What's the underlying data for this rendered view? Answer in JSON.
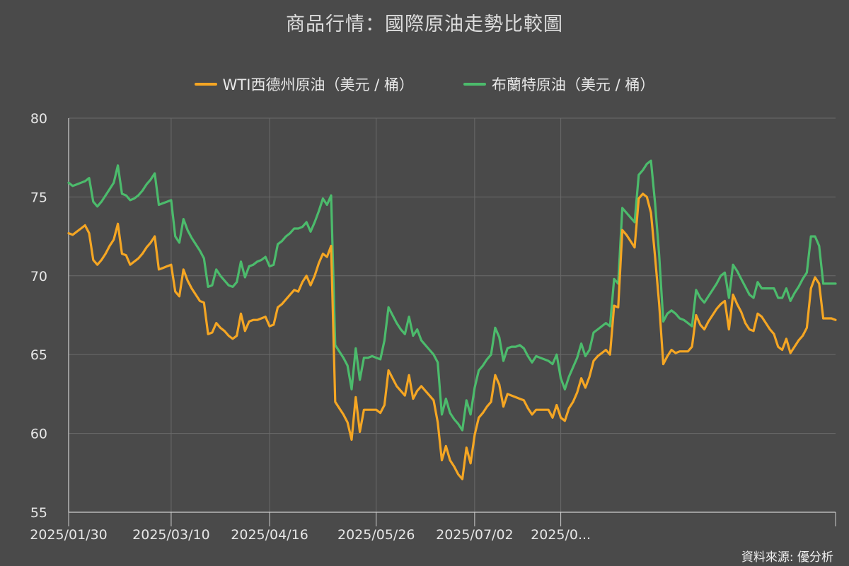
{
  "chart_data": {
    "type": "line",
    "title": "商品行情：國際原油走勢比較圖",
    "source": "資料來源: 優分析",
    "ylim": [
      55,
      80
    ],
    "yticks": [
      "55",
      "60",
      "65",
      "70",
      "75",
      "80"
    ],
    "x_tick_labels": [
      "2025/01/30",
      "2025/03/10",
      "2025/04/16",
      "2025/05/26",
      "2025/07/02",
      "2025/0..."
    ],
    "x_tick_index": [
      0,
      25,
      49,
      75,
      99,
      120
    ],
    "grid": true,
    "legend_position": "top-center",
    "series": [
      {
        "name": "WTI西德州原油（美元 / 桶）",
        "color": "#f5a623",
        "values": [
          72.7,
          72.6,
          72.8,
          73.0,
          73.2,
          72.7,
          71.0,
          70.7,
          71.0,
          71.4,
          71.9,
          72.3,
          73.3,
          71.4,
          71.3,
          70.7,
          70.9,
          71.1,
          71.4,
          71.8,
          72.1,
          72.5,
          70.4,
          70.5,
          70.6,
          70.7,
          69.0,
          68.7,
          70.4,
          69.7,
          69.2,
          68.8,
          68.4,
          68.3,
          66.3,
          66.4,
          67.0,
          66.7,
          66.5,
          66.2,
          66.0,
          66.2,
          67.6,
          66.5,
          67.1,
          67.2,
          67.2,
          67.3,
          67.4,
          66.8,
          66.9,
          68.0,
          68.2,
          68.5,
          68.8,
          69.1,
          69.0,
          69.6,
          70.0,
          69.4,
          70.0,
          70.8,
          71.4,
          71.2,
          71.9,
          62.0,
          61.6,
          61.2,
          60.7,
          59.6,
          62.3,
          60.1,
          61.5,
          61.5,
          61.5,
          61.5,
          61.3,
          61.8,
          64.0,
          63.5,
          63.0,
          62.7,
          62.4,
          63.7,
          62.2,
          62.7,
          63.0,
          62.7,
          62.4,
          62.1,
          60.7,
          58.3,
          59.2,
          58.3,
          57.9,
          57.4,
          57.1,
          59.1,
          58.1,
          59.9,
          61.0,
          61.3,
          61.7,
          62.0,
          63.7,
          63.1,
          61.7,
          62.5,
          62.4,
          62.3,
          62.2,
          62.1,
          61.6,
          61.2,
          61.5,
          61.5,
          61.5,
          61.5,
          61.0,
          61.8,
          61.0,
          60.8,
          61.6,
          62.0,
          62.6,
          63.5,
          62.9,
          63.6,
          64.6,
          64.9,
          65.1,
          65.3,
          65.0,
          68.1,
          68.0,
          72.9,
          72.6,
          72.2,
          71.8,
          74.9,
          75.2,
          75.0,
          74.0,
          71.2,
          68.2,
          64.4,
          64.9,
          65.3,
          65.1,
          65.2,
          65.2,
          65.2,
          65.5,
          67.5,
          66.9,
          66.6,
          67.1,
          67.5,
          67.9,
          68.2,
          68.4,
          66.6,
          68.8,
          68.2,
          67.7,
          67.0,
          66.6,
          66.5,
          67.6,
          67.4,
          67.0,
          66.6,
          66.3,
          65.5,
          65.3,
          66.0,
          65.1,
          65.5,
          65.9,
          66.2,
          66.7,
          69.2,
          69.9,
          69.5,
          67.3,
          67.3,
          67.3,
          67.2
        ]
      },
      {
        "name": "布蘭特原油（美元 / 桶）",
        "color": "#4cbb6c",
        "values": [
          75.9,
          75.7,
          75.8,
          75.9,
          76.0,
          76.2,
          74.7,
          74.4,
          74.7,
          75.1,
          75.5,
          75.9,
          77.0,
          75.2,
          75.1,
          74.8,
          74.9,
          75.1,
          75.4,
          75.8,
          76.1,
          76.5,
          74.5,
          74.6,
          74.7,
          74.8,
          72.5,
          72.1,
          73.6,
          72.9,
          72.4,
          72.0,
          71.6,
          71.1,
          69.3,
          69.4,
          70.4,
          70.0,
          69.7,
          69.4,
          69.3,
          69.6,
          70.9,
          69.9,
          70.6,
          70.7,
          70.9,
          71.0,
          71.2,
          70.6,
          70.7,
          72.0,
          72.2,
          72.5,
          72.7,
          73.0,
          73.0,
          73.1,
          73.4,
          72.8,
          73.4,
          74.1,
          74.9,
          74.5,
          75.1,
          65.6,
          65.2,
          64.8,
          64.3,
          62.8,
          65.4,
          63.4,
          64.8,
          64.8,
          64.9,
          64.8,
          64.7,
          65.9,
          68.0,
          67.5,
          67.0,
          66.6,
          66.3,
          67.4,
          66.2,
          66.6,
          65.9,
          65.6,
          65.3,
          65.0,
          64.5,
          61.2,
          62.2,
          61.3,
          60.9,
          60.6,
          60.2,
          62.1,
          61.2,
          62.9,
          64.0,
          64.3,
          64.7,
          65.0,
          66.7,
          66.1,
          64.6,
          65.4,
          65.5,
          65.5,
          65.6,
          65.4,
          64.9,
          64.5,
          64.9,
          64.8,
          64.7,
          64.6,
          64.4,
          65.0,
          63.5,
          62.8,
          63.6,
          64.2,
          64.8,
          65.7,
          64.9,
          65.3,
          66.4,
          66.6,
          66.8,
          67.0,
          66.8,
          69.8,
          69.5,
          74.3,
          74.0,
          73.7,
          73.4,
          76.4,
          76.7,
          77.1,
          77.3,
          74.6,
          71.3,
          67.1,
          67.6,
          67.8,
          67.6,
          67.3,
          67.2,
          67.0,
          66.8,
          69.1,
          68.6,
          68.3,
          68.7,
          69.1,
          69.5,
          70.0,
          70.2,
          68.6,
          70.7,
          70.3,
          69.8,
          69.3,
          68.8,
          68.6,
          69.6,
          69.2,
          69.2,
          69.2,
          69.2,
          68.6,
          68.6,
          69.2,
          68.4,
          68.9,
          69.3,
          69.8,
          70.2,
          72.5,
          72.5,
          71.9,
          69.5,
          69.5,
          69.5,
          69.5
        ]
      }
    ]
  }
}
